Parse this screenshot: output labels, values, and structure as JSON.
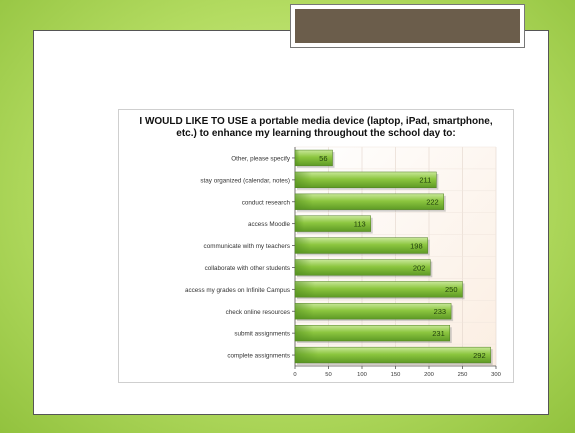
{
  "chart_data": {
    "type": "bar",
    "orientation": "horizontal",
    "title_lines": [
      "I WOULD LIKE TO USE a portable media device (laptop, iPad, smartphone,",
      "etc.) to enhance my learning throughout the school day to:"
    ],
    "categories": [
      "Other, please specify",
      "stay organized (calendar, notes)",
      "conduct research",
      "access Moodle",
      "communicate with my teachers",
      "collaborate with other students",
      "access my grades on Infinite Campus",
      "check online resources",
      "submit assignments",
      "complete assignments"
    ],
    "values": [
      56,
      211,
      222,
      113,
      198,
      202,
      250,
      233,
      231,
      292
    ],
    "xlim": [
      0,
      300
    ],
    "xticks": [
      "0",
      "50",
      "100",
      "150",
      "200",
      "250",
      "300"
    ],
    "grid": true,
    "bar_color": "#8dc63f"
  }
}
